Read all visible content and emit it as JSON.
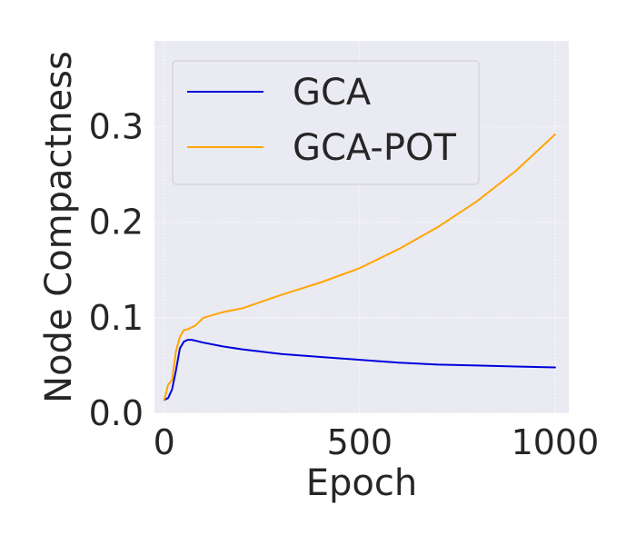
{
  "chart_data": {
    "type": "line",
    "xlabel": "Epoch",
    "ylabel": "Node Compactness",
    "xlim": [
      -25,
      1035
    ],
    "ylim": [
      0,
      0.39
    ],
    "xticks": [
      0,
      500,
      1000
    ],
    "xtick_labels": [
      "0",
      "500",
      "1000"
    ],
    "yticks": [
      0.0,
      0.1,
      0.2,
      0.3
    ],
    "ytick_labels": [
      "0.0",
      "0.1",
      "0.2",
      "0.3"
    ],
    "grid": true,
    "legend_position": "top-left",
    "series": [
      {
        "name": "GCA",
        "color": "#0000dd",
        "x": [
          0,
          10,
          20,
          30,
          40,
          50,
          60,
          70,
          80,
          100,
          150,
          200,
          300,
          400,
          500,
          600,
          700,
          800,
          900,
          1000
        ],
        "y": [
          0.014,
          0.016,
          0.025,
          0.045,
          0.068,
          0.075,
          0.077,
          0.077,
          0.076,
          0.074,
          0.07,
          0.067,
          0.062,
          0.059,
          0.056,
          0.053,
          0.051,
          0.05,
          0.049,
          0.048
        ]
      },
      {
        "name": "GCA-POT",
        "color": "#ffa500",
        "x": [
          0,
          10,
          20,
          30,
          40,
          50,
          60,
          70,
          80,
          100,
          150,
          200,
          300,
          400,
          500,
          600,
          700,
          800,
          900,
          1000
        ],
        "y": [
          0.014,
          0.03,
          0.035,
          0.065,
          0.08,
          0.087,
          0.088,
          0.09,
          0.092,
          0.1,
          0.106,
          0.11,
          0.124,
          0.137,
          0.152,
          0.172,
          0.195,
          0.222,
          0.254,
          0.292
        ]
      }
    ]
  }
}
